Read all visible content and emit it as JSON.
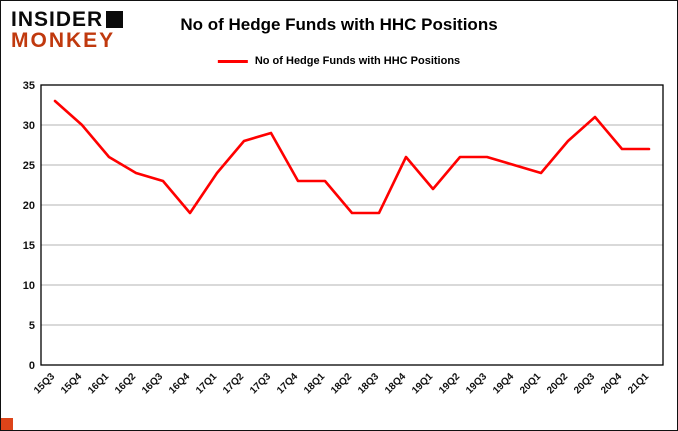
{
  "branding": {
    "line1": "INSIDER",
    "line2": "MONKEY",
    "accent_color": "#c0390e"
  },
  "header": {
    "title": "No of Hedge Funds with HHC Positions"
  },
  "legend": {
    "label": "No of Hedge Funds with HHC Positions",
    "color": "#ff0000"
  },
  "chart_data": {
    "type": "line",
    "title": "No of Hedge Funds with HHC Positions",
    "categories": [
      "15Q3",
      "15Q4",
      "16Q1",
      "16Q2",
      "16Q3",
      "16Q4",
      "17Q1",
      "17Q2",
      "17Q3",
      "17Q4",
      "18Q1",
      "18Q2",
      "18Q3",
      "18Q4",
      "19Q1",
      "19Q2",
      "19Q3",
      "19Q4",
      "20Q1",
      "20Q2",
      "20Q3",
      "20Q4",
      "21Q1"
    ],
    "series": [
      {
        "name": "No of Hedge Funds with HHC Positions",
        "color": "#ff0000",
        "values": [
          33,
          30,
          26,
          24,
          23,
          19,
          24,
          28,
          29,
          23,
          23,
          19,
          19,
          26,
          22,
          26,
          26,
          25,
          24,
          28,
          31,
          27,
          27
        ]
      }
    ],
    "xlabel": "",
    "ylabel": "",
    "ylim": [
      0,
      35
    ],
    "yticks": [
      0,
      5,
      10,
      15,
      20,
      25,
      30,
      35
    ],
    "grid": true,
    "gridline_color": "#b3b3b3",
    "legend_position": "top"
  }
}
